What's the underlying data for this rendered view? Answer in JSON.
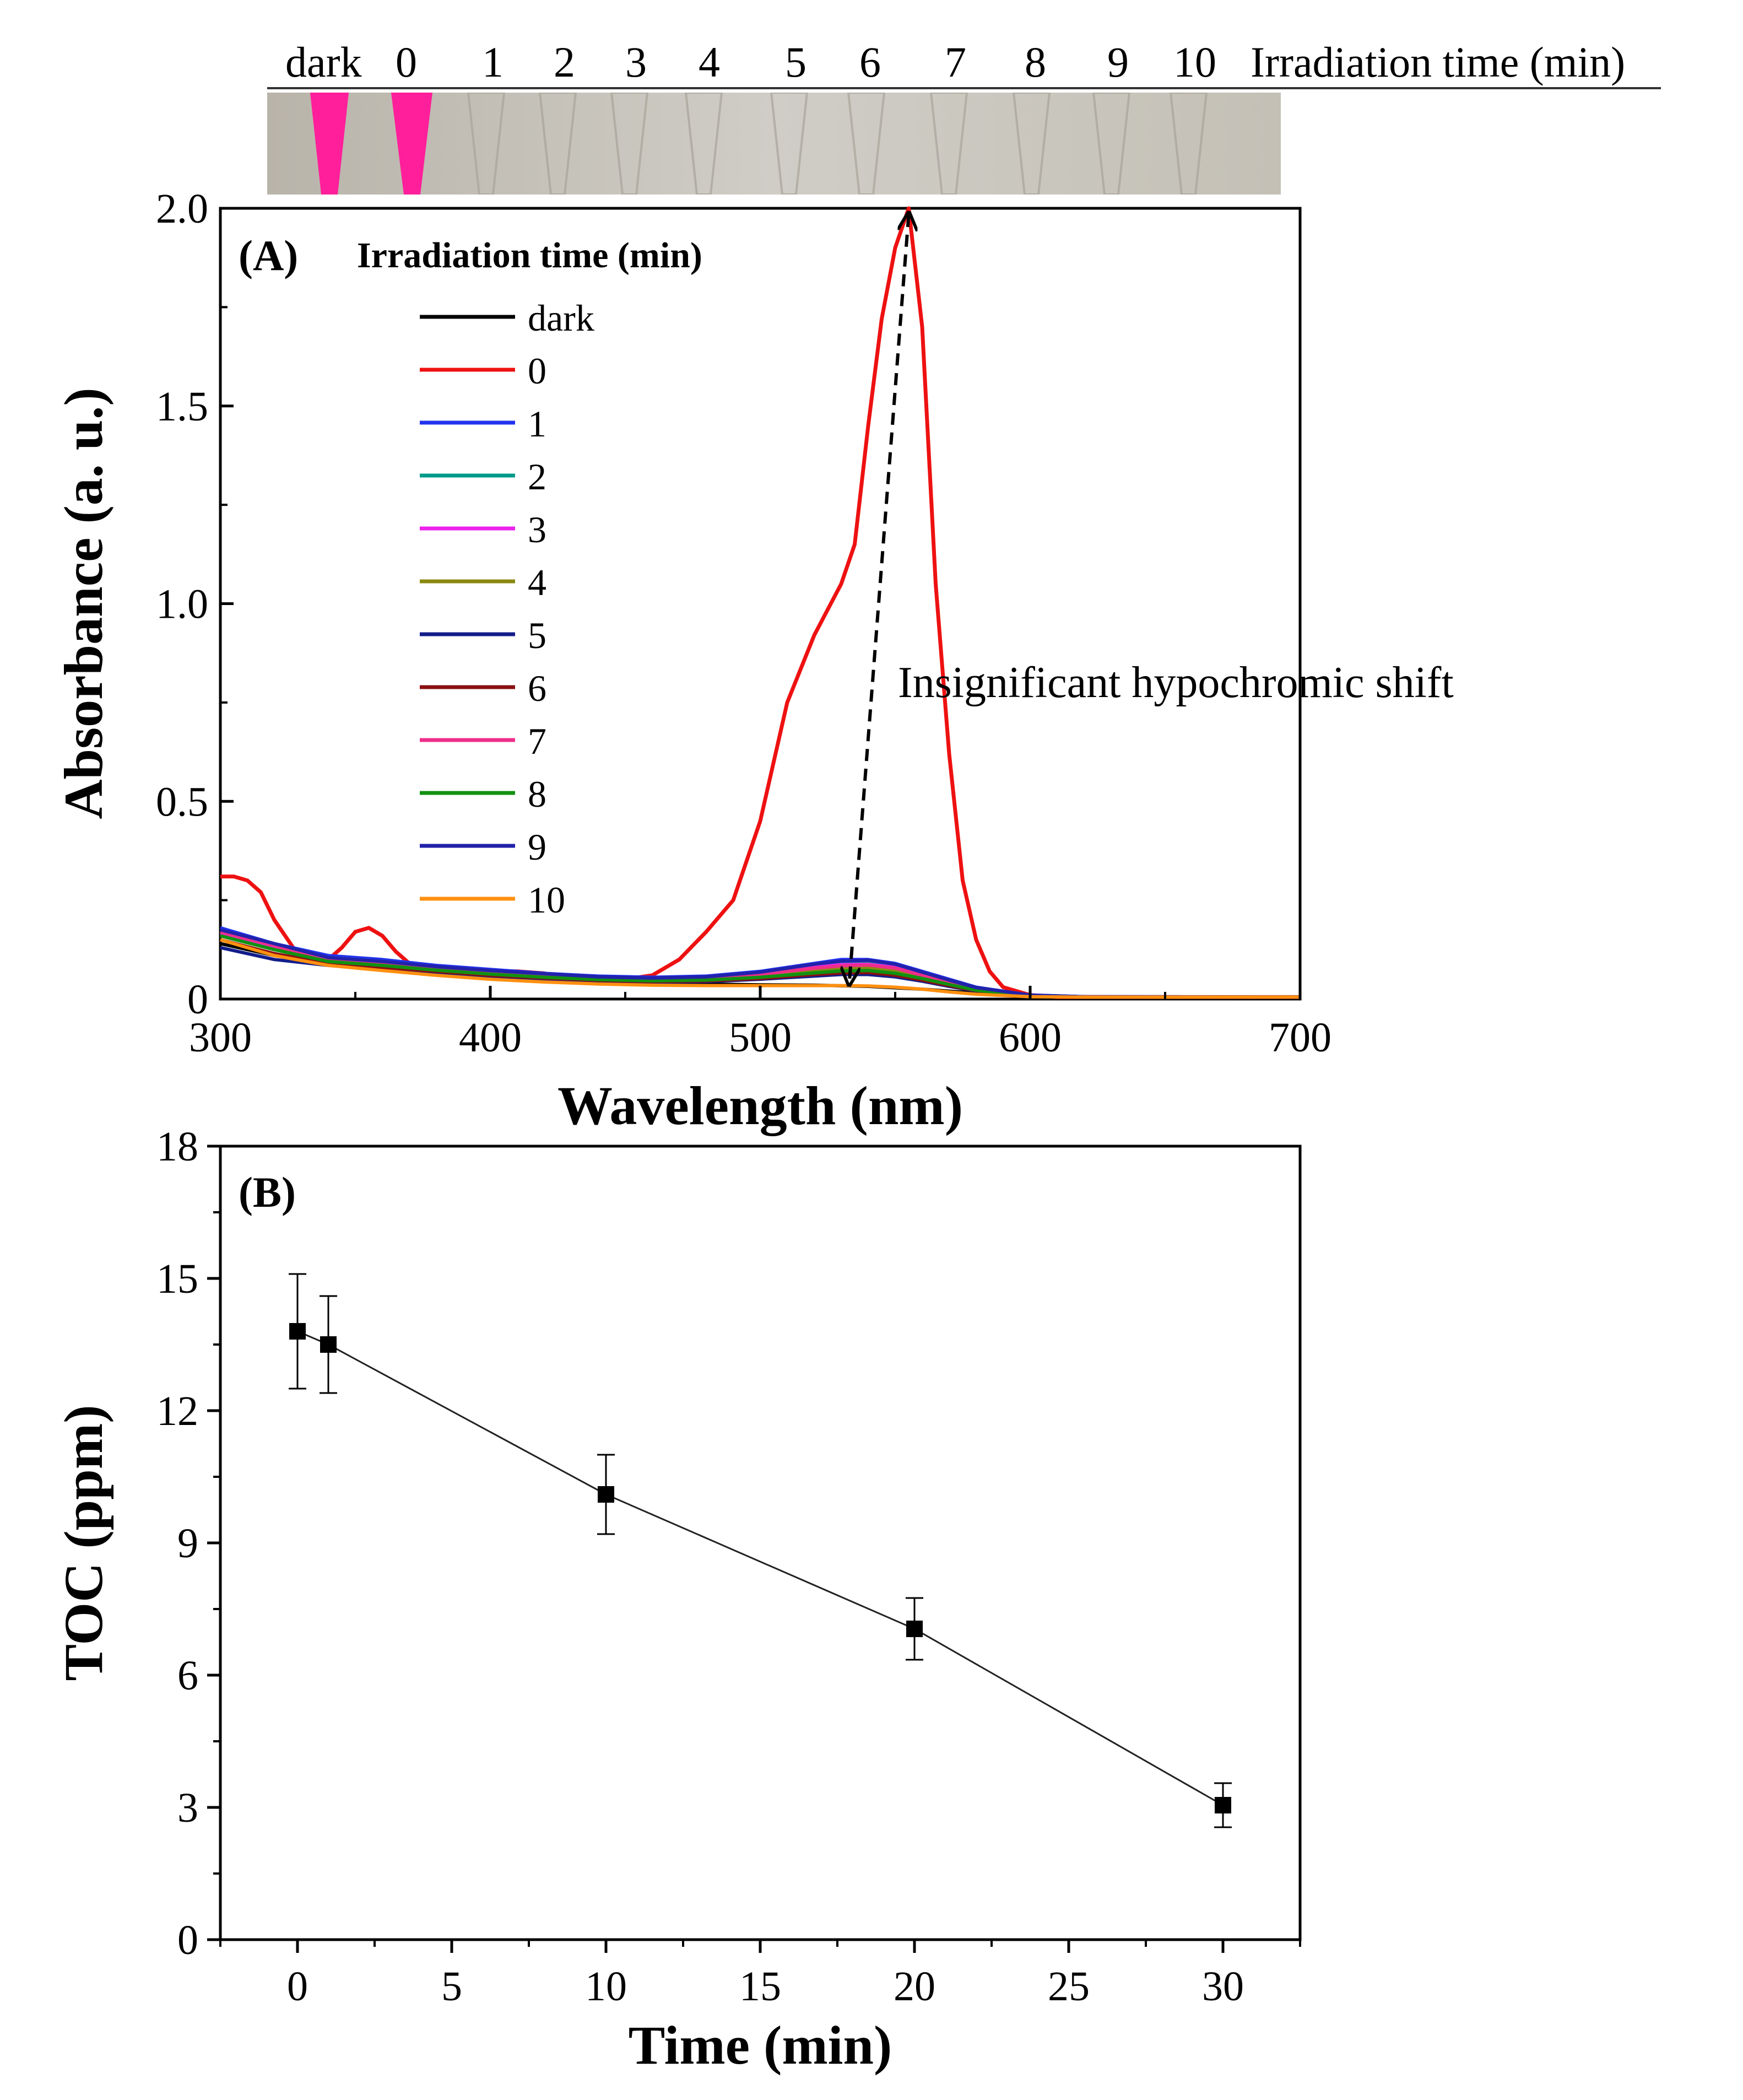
{
  "strip": {
    "labels": [
      "dark",
      "0",
      "1",
      "2",
      "3",
      "4",
      "5",
      "6",
      "7",
      "8",
      "9",
      "10"
    ],
    "axis_title": "Irradiation time (min)"
  },
  "colors": {
    "pink": "#ff2f9a",
    "photo_bg": "#c8c5bd"
  },
  "chart_data": [
    {
      "type": "line",
      "panel": "(A)",
      "xlabel": "Wavelength (nm)",
      "ylabel": "Absorbance (a. u.)",
      "xlim": [
        300,
        700
      ],
      "ylim": [
        0,
        2.0
      ],
      "xticks": [
        "300",
        "400",
        "500",
        "600",
        "700"
      ],
      "yticks": [
        "0",
        "0.5",
        "1.0",
        "1.5",
        "2.0"
      ],
      "legend_title": "Irradiation time (min)",
      "annotation": "Insignificant hypochromic shift",
      "arrow": {
        "from": [
          555,
          2.0
        ],
        "to": [
          533,
          0.03
        ]
      },
      "series": [
        {
          "name": "dark",
          "color": "#000000",
          "x": [
            300,
            320,
            340,
            360,
            380,
            400,
            420,
            440,
            460,
            480,
            500,
            520,
            540,
            560,
            580,
            600,
            620,
            700
          ],
          "y": [
            0.14,
            0.11,
            0.09,
            0.08,
            0.065,
            0.055,
            0.048,
            0.042,
            0.04,
            0.038,
            0.036,
            0.035,
            0.032,
            0.025,
            0.015,
            0.008,
            0.005,
            0.005
          ]
        },
        {
          "name": "0",
          "color": "#ee1111",
          "x": [
            300,
            305,
            310,
            315,
            320,
            330,
            340,
            345,
            350,
            355,
            360,
            365,
            370,
            380,
            390,
            400,
            410,
            420,
            430,
            440,
            450,
            460,
            470,
            480,
            490,
            500,
            510,
            520,
            530,
            535,
            540,
            545,
            550,
            555,
            560,
            565,
            570,
            575,
            580,
            585,
            590,
            600,
            610,
            620,
            700
          ],
          "y": [
            0.31,
            0.31,
            0.3,
            0.27,
            0.2,
            0.1,
            0.1,
            0.13,
            0.17,
            0.18,
            0.16,
            0.12,
            0.09,
            0.07,
            0.06,
            0.07,
            0.07,
            0.065,
            0.05,
            0.048,
            0.05,
            0.06,
            0.1,
            0.17,
            0.25,
            0.45,
            0.75,
            0.92,
            1.05,
            1.15,
            1.45,
            1.72,
            1.9,
            2.0,
            1.7,
            1.05,
            0.62,
            0.3,
            0.15,
            0.07,
            0.03,
            0.01,
            0.005,
            0.005,
            0.005
          ]
        },
        {
          "name": "1",
          "color": "#2233ee",
          "x": [
            300,
            320,
            340,
            360,
            380,
            400,
            420,
            440,
            460,
            480,
            500,
            520,
            530,
            540,
            550,
            560,
            570,
            580,
            600,
            620,
            700
          ],
          "y": [
            0.18,
            0.14,
            0.11,
            0.1,
            0.085,
            0.075,
            0.065,
            0.058,
            0.055,
            0.058,
            0.07,
            0.09,
            0.1,
            0.1,
            0.09,
            0.07,
            0.05,
            0.03,
            0.01,
            0.006,
            0.005
          ]
        },
        {
          "name": "2",
          "color": "#009a8a",
          "x": [
            300,
            320,
            340,
            360,
            380,
            400,
            420,
            440,
            460,
            480,
            500,
            520,
            530,
            540,
            550,
            560,
            570,
            580,
            600,
            620,
            700
          ],
          "y": [
            0.17,
            0.135,
            0.105,
            0.095,
            0.08,
            0.07,
            0.062,
            0.055,
            0.052,
            0.055,
            0.066,
            0.085,
            0.092,
            0.094,
            0.085,
            0.066,
            0.046,
            0.028,
            0.009,
            0.006,
            0.005
          ]
        },
        {
          "name": "3",
          "color": "#ee22ee",
          "x": [
            300,
            320,
            340,
            360,
            380,
            400,
            420,
            440,
            460,
            480,
            500,
            520,
            530,
            540,
            550,
            560,
            570,
            580,
            600,
            620,
            700
          ],
          "y": [
            0.165,
            0.13,
            0.1,
            0.09,
            0.078,
            0.068,
            0.06,
            0.053,
            0.05,
            0.053,
            0.063,
            0.08,
            0.087,
            0.088,
            0.08,
            0.062,
            0.043,
            0.026,
            0.009,
            0.006,
            0.005
          ]
        },
        {
          "name": "4",
          "color": "#8a8a10",
          "x": [
            300,
            320,
            340,
            360,
            380,
            400,
            420,
            440,
            460,
            480,
            500,
            520,
            530,
            540,
            550,
            560,
            570,
            580,
            600,
            620,
            700
          ],
          "y": [
            0.16,
            0.125,
            0.098,
            0.087,
            0.075,
            0.065,
            0.057,
            0.05,
            0.047,
            0.05,
            0.058,
            0.072,
            0.078,
            0.08,
            0.072,
            0.056,
            0.04,
            0.024,
            0.008,
            0.006,
            0.005
          ]
        },
        {
          "name": "5",
          "color": "#121d8a",
          "x": [
            300,
            320,
            340,
            360,
            380,
            400,
            420,
            440,
            460,
            480,
            500,
            520,
            530,
            540,
            550,
            560,
            570,
            580,
            600,
            620,
            700
          ],
          "y": [
            0.13,
            0.1,
            0.085,
            0.075,
            0.065,
            0.057,
            0.05,
            0.045,
            0.043,
            0.044,
            0.05,
            0.058,
            0.062,
            0.062,
            0.056,
            0.045,
            0.032,
            0.02,
            0.008,
            0.005,
            0.005
          ]
        },
        {
          "name": "6",
          "color": "#8a1010",
          "x": [
            300,
            320,
            340,
            360,
            380,
            400,
            420,
            440,
            460,
            480,
            500,
            520,
            530,
            540,
            550,
            560,
            570,
            580,
            600,
            620,
            700
          ],
          "y": [
            0.15,
            0.115,
            0.09,
            0.08,
            0.07,
            0.06,
            0.053,
            0.047,
            0.044,
            0.046,
            0.052,
            0.062,
            0.066,
            0.067,
            0.06,
            0.048,
            0.034,
            0.021,
            0.008,
            0.005,
            0.005
          ]
        },
        {
          "name": "7",
          "color": "#ee2e8a",
          "x": [
            300,
            320,
            340,
            360,
            380,
            400,
            420,
            440,
            460,
            480,
            500,
            520,
            530,
            540,
            550,
            560,
            570,
            580,
            600,
            620,
            700
          ],
          "y": [
            0.17,
            0.135,
            0.1,
            0.09,
            0.078,
            0.068,
            0.06,
            0.053,
            0.05,
            0.053,
            0.062,
            0.078,
            0.084,
            0.086,
            0.078,
            0.06,
            0.042,
            0.025,
            0.009,
            0.006,
            0.005
          ]
        },
        {
          "name": "8",
          "color": "#119111",
          "x": [
            300,
            320,
            340,
            360,
            380,
            400,
            420,
            440,
            460,
            480,
            500,
            520,
            530,
            540,
            550,
            560,
            570,
            580,
            600,
            620,
            700
          ],
          "y": [
            0.16,
            0.125,
            0.095,
            0.085,
            0.073,
            0.063,
            0.055,
            0.049,
            0.046,
            0.048,
            0.055,
            0.066,
            0.071,
            0.072,
            0.065,
            0.052,
            0.037,
            0.022,
            0.008,
            0.005,
            0.005
          ]
        },
        {
          "name": "9",
          "color": "#2222aa",
          "x": [
            300,
            320,
            340,
            360,
            380,
            400,
            420,
            440,
            460,
            480,
            500,
            520,
            530,
            540,
            550,
            560,
            570,
            580,
            600,
            620,
            700
          ],
          "y": [
            0.175,
            0.14,
            0.105,
            0.095,
            0.082,
            0.072,
            0.064,
            0.056,
            0.053,
            0.056,
            0.068,
            0.088,
            0.096,
            0.098,
            0.088,
            0.068,
            0.048,
            0.029,
            0.01,
            0.006,
            0.005
          ]
        },
        {
          "name": "10",
          "color": "#ff9010",
          "x": [
            300,
            320,
            340,
            360,
            380,
            400,
            420,
            440,
            460,
            480,
            500,
            520,
            530,
            540,
            550,
            560,
            570,
            580,
            600,
            620,
            700
          ],
          "y": [
            0.15,
            0.11,
            0.085,
            0.072,
            0.06,
            0.05,
            0.043,
            0.038,
            0.035,
            0.034,
            0.034,
            0.034,
            0.034,
            0.033,
            0.03,
            0.025,
            0.018,
            0.012,
            0.006,
            0.005,
            0.005
          ]
        }
      ]
    },
    {
      "type": "scatter",
      "panel": "(B)",
      "xlabel": "Time (min)",
      "ylabel": "TOC (ppm)",
      "xlim": [
        -2.5,
        32.5
      ],
      "ylim": [
        0,
        18
      ],
      "xticks": [
        "0",
        "5",
        "10",
        "15",
        "20",
        "25",
        "30"
      ],
      "yticks": [
        "0",
        "3",
        "6",
        "9",
        "12",
        "15",
        "18"
      ],
      "x": [
        0,
        1,
        10,
        20,
        30
      ],
      "y": [
        13.8,
        13.5,
        10.1,
        7.05,
        3.05
      ],
      "yerr": [
        1.3,
        1.1,
        0.9,
        0.7,
        0.5
      ]
    }
  ]
}
